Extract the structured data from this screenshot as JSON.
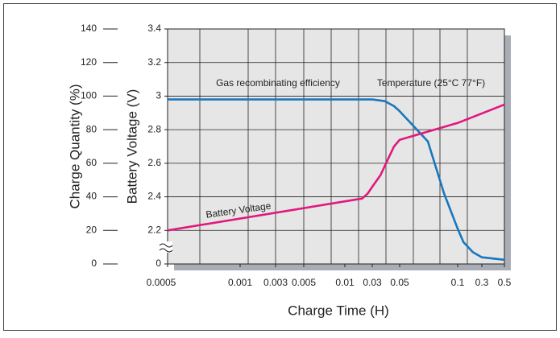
{
  "chart_data": {
    "type": "line",
    "y_label": "Charge Quantity (%)",
    "y2_label": "Battery Voltage (V)",
    "x_label": "Charge Time (H)",
    "annotations": [
      "Temperature (25°C 77°F)"
    ],
    "xticks": [
      0.0005,
      0.001,
      0.003,
      0.005,
      0.01,
      0.03,
      0.05,
      0.1,
      0.3,
      0.5
    ],
    "ylim": [
      0,
      140
    ],
    "yticks": [
      0,
      20,
      40,
      60,
      80,
      100,
      120,
      140
    ],
    "y2lim": [
      2.0,
      3.4
    ],
    "y2ticks": [
      0,
      2.2,
      2.4,
      2.6,
      2.8,
      3.0,
      3.2,
      3.4
    ],
    "y2_break": true,
    "grid": true,
    "series": [
      {
        "name": "Gas recombinating efficiency",
        "color": "#1877bd",
        "axis": "y",
        "x": [
          0.0005,
          0.01,
          0.03,
          0.038,
          0.045,
          0.05,
          0.07,
          0.085,
          0.1,
          0.13,
          0.2,
          0.3,
          0.5
        ],
        "values": [
          98,
          98,
          98,
          97,
          94,
          91,
          73,
          42,
          21,
          13,
          7,
          4,
          2.5
        ]
      },
      {
        "name": "Battery Voltage",
        "color": "#e0197d",
        "axis": "y2",
        "x": [
          0.0005,
          0.02,
          0.025,
          0.03,
          0.035,
          0.04,
          0.045,
          0.05,
          0.1,
          0.5
        ],
        "values": [
          2.2,
          2.39,
          2.42,
          2.46,
          2.53,
          2.62,
          2.7,
          2.74,
          2.84,
          2.95
        ]
      }
    ]
  }
}
